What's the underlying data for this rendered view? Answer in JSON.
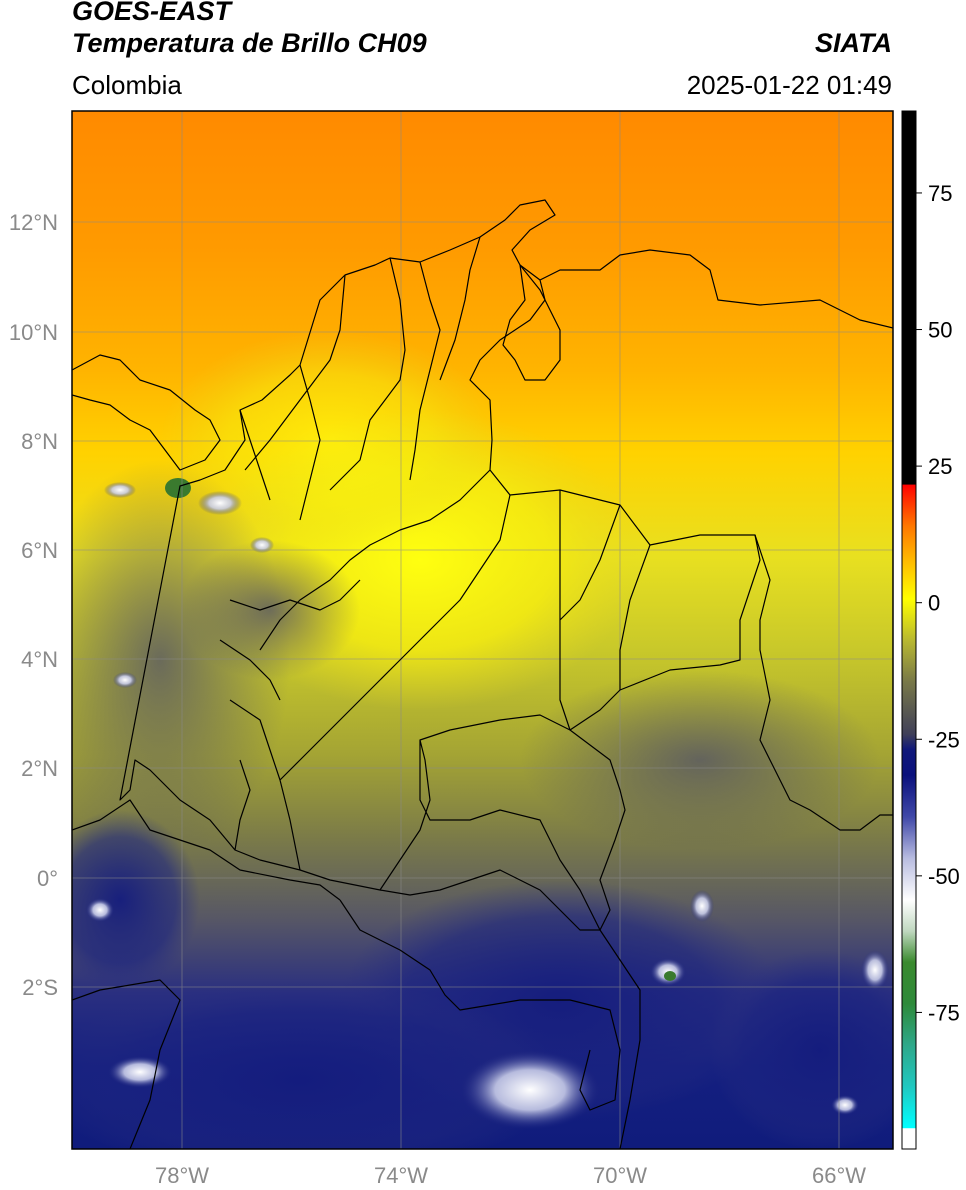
{
  "header": {
    "satellite": "GOES-EAST",
    "product": "Temperatura de Brillo CH09",
    "region": "Colombia",
    "agency": "SIATA",
    "datetime": "2025-01-22 01:49"
  },
  "map": {
    "lon_range": [
      -80,
      -65
    ],
    "lat_range": [
      -5,
      14
    ],
    "lat_ticks": [
      "12°N",
      "10°N",
      "8°N",
      "6°N",
      "4°N",
      "2°N",
      "0°",
      "2°S"
    ],
    "lon_ticks": [
      "78°W",
      "74°W",
      "70°W",
      "66°W"
    ],
    "colors": {
      "warm_orange": "#ff8c00",
      "yellow": "#ffff00",
      "olive": "#b5b52a",
      "gray": "#555566",
      "navy": "#0d1a7a",
      "white": "#ffffff"
    }
  },
  "colorbar": {
    "min": -100,
    "max": 90,
    "tick_labels": [
      "75",
      "50",
      "25",
      "0",
      "-25",
      "-50",
      "-75"
    ],
    "tick_values": [
      75,
      50,
      25,
      0,
      -25,
      -50,
      -75
    ]
  }
}
